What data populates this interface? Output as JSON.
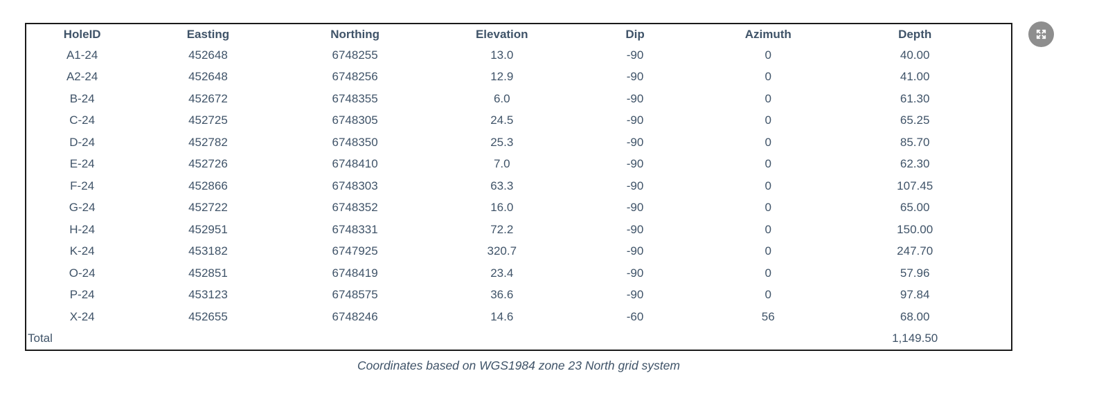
{
  "table": {
    "columns": [
      "HoleID",
      "Easting",
      "Northing",
      "Elevation",
      "Dip",
      "Azimuth",
      "Depth"
    ],
    "rows": [
      [
        "A1-24",
        "452648",
        "6748255",
        "13.0",
        "-90",
        "0",
        "40.00"
      ],
      [
        "A2-24",
        "452648",
        "6748256",
        "12.9",
        "-90",
        "0",
        "41.00"
      ],
      [
        "B-24",
        "452672",
        "6748355",
        "6.0",
        "-90",
        "0",
        "61.30"
      ],
      [
        "C-24",
        "452725",
        "6748305",
        "24.5",
        "-90",
        "0",
        "65.25"
      ],
      [
        "D-24",
        "452782",
        "6748350",
        "25.3",
        "-90",
        "0",
        "85.70"
      ],
      [
        "E-24",
        "452726",
        "6748410",
        "7.0",
        "-90",
        "0",
        "62.30"
      ],
      [
        "F-24",
        "452866",
        "6748303",
        "63.3",
        "-90",
        "0",
        "107.45"
      ],
      [
        "G-24",
        "452722",
        "6748352",
        "16.0",
        "-90",
        "0",
        "65.00"
      ],
      [
        "H-24",
        "452951",
        "6748331",
        "72.2",
        "-90",
        "0",
        "150.00"
      ],
      [
        "K-24",
        "453182",
        "6747925",
        "320.7",
        "-90",
        "0",
        "247.70"
      ],
      [
        "O-24",
        "452851",
        "6748419",
        "23.4",
        "-90",
        "0",
        "57.96"
      ],
      [
        "P-24",
        "453123",
        "6748575",
        "36.6",
        "-90",
        "0",
        "97.84"
      ],
      [
        "X-24",
        "452655",
        "6748246",
        "14.6",
        "-60",
        "56",
        "68.00"
      ]
    ],
    "total": {
      "label": "Total",
      "depth": "1,149.50"
    }
  },
  "caption": "Coordinates based on WGS1984 zone 23 North grid system",
  "controls": {
    "fullscreen_icon": "expand-arrows-icon"
  },
  "colors": {
    "text": "#3F5368",
    "border": "#1a1a1a",
    "button_bg": "#8e8e8e",
    "button_glyph": "#ffffff"
  }
}
